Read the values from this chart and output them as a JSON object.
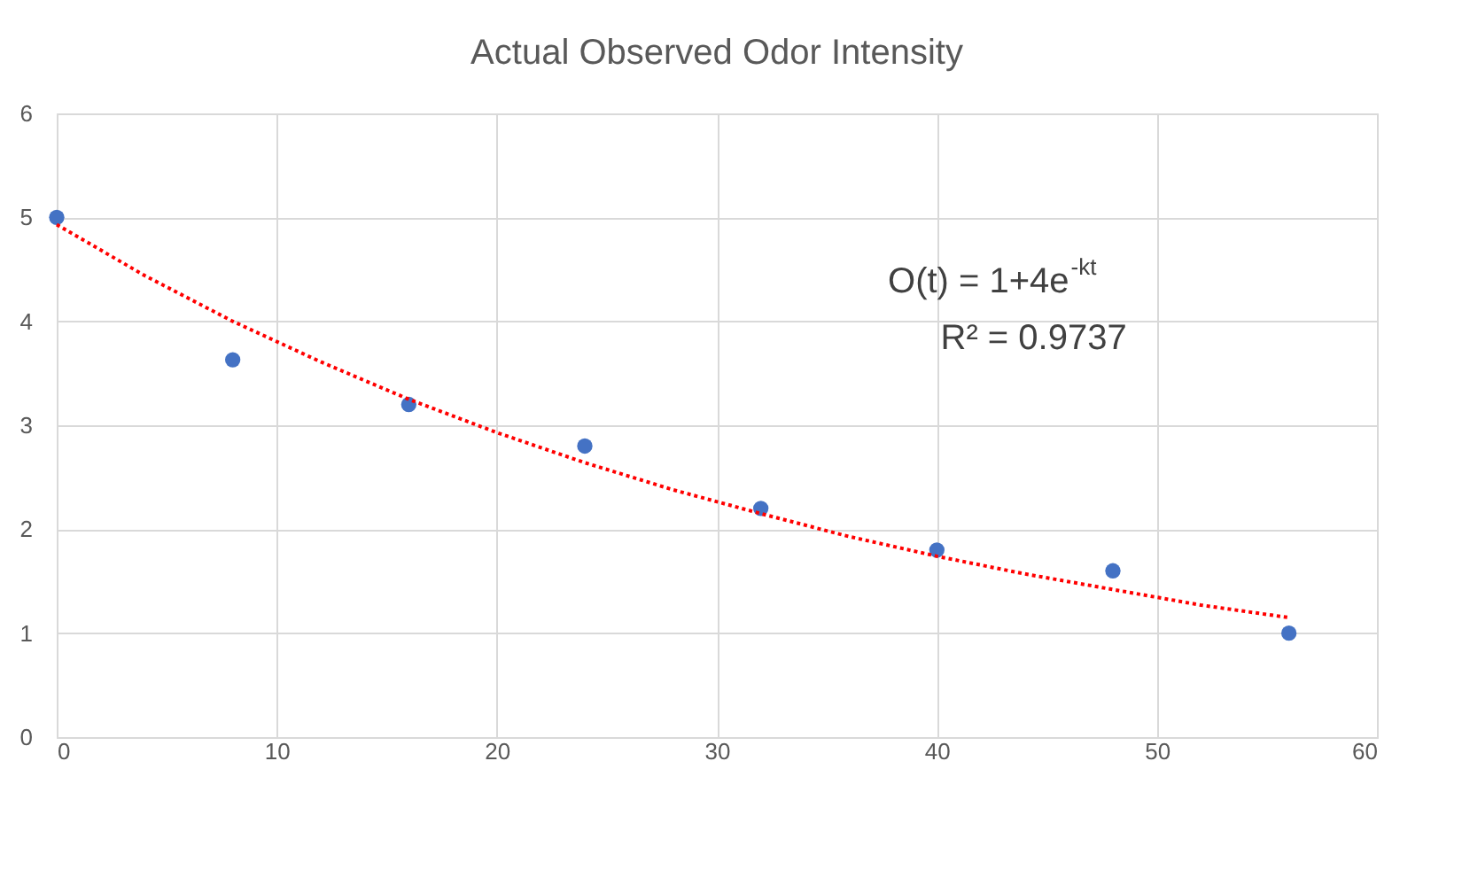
{
  "chart_data": {
    "type": "scatter",
    "title": "Actual Observed Odor Intensity",
    "x": [
      0,
      8,
      16,
      24,
      32,
      40,
      48,
      56
    ],
    "series": [
      {
        "color": "#4472c4",
        "marker": "circle",
        "values": [
          5,
          3.63,
          3.2,
          2.8,
          2.2,
          1.8,
          1.6,
          1.0
        ]
      },
      {
        "type": "line",
        "color": "#ff0000",
        "line_style": "dotted",
        "x": [
          0,
          4,
          8,
          12,
          16,
          20,
          24,
          28,
          32,
          36,
          40,
          44,
          48,
          52,
          56
        ],
        "values": [
          4.93,
          4.44,
          4.0,
          3.61,
          3.25,
          2.93,
          2.64,
          2.38,
          2.15,
          1.93,
          1.74,
          1.57,
          1.42,
          1.27,
          1.15
        ]
      }
    ],
    "annotations": [
      "O(t) = 1+4e$^{-kt}$",
      "R² = 0.9737"
    ],
    "xlim": [
      0,
      60
    ],
    "xticks": [
      0,
      10,
      20,
      30,
      40,
      50,
      60
    ],
    "ylim": [
      0,
      6
    ],
    "yticks": [
      0,
      1,
      2,
      3,
      4,
      5,
      6
    ],
    "grid": true
  }
}
